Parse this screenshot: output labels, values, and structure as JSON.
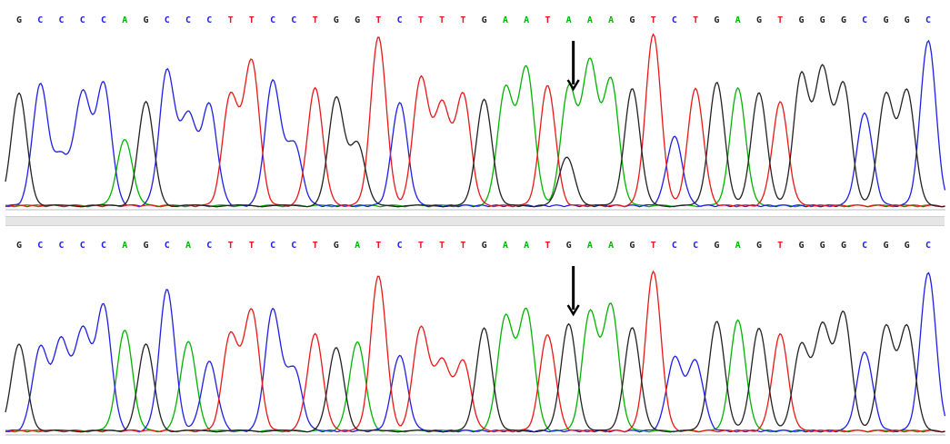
{
  "colors": {
    "A": "#00b400",
    "C": "#1f1fe6",
    "G": "#222222",
    "T": "#e81818"
  },
  "arrow_icon": "down-arrow-icon",
  "panels": [
    {
      "id": "top",
      "sequence": "GCCCCAGCCCTTCCTGGTCTTTGAATAAAGTCTGAGTGGGCGGC",
      "heterozygous_index": 26,
      "secondary_peak": {
        "base": "G",
        "level": 0.28
      },
      "peaks": [
        0.65,
        0.7,
        0.28,
        0.65,
        0.7,
        0.38,
        0.6,
        0.78,
        0.52,
        0.58,
        0.64,
        0.84,
        0.72,
        0.36,
        0.68,
        0.62,
        0.36,
        0.98,
        0.6,
        0.74,
        0.58,
        0.64,
        0.62,
        0.68,
        0.8,
        0.7,
        0.68,
        0.82,
        0.72,
        0.68,
        0.99,
        0.4,
        0.68,
        0.72,
        0.68,
        0.66,
        0.6,
        0.76,
        0.78,
        0.7,
        0.54,
        0.64,
        0.66,
        0.96
      ]
    },
    {
      "id": "bottom",
      "sequence": "GCCCCAGCACTTCCTGATCTTTGAATGAAGTCCGAGTGGGCGGC",
      "heterozygous_index": 26,
      "secondary_peak": null,
      "peaks": [
        0.5,
        0.48,
        0.52,
        0.58,
        0.72,
        0.58,
        0.5,
        0.82,
        0.52,
        0.4,
        0.56,
        0.7,
        0.7,
        0.36,
        0.56,
        0.48,
        0.52,
        0.9,
        0.44,
        0.6,
        0.4,
        0.4,
        0.6,
        0.66,
        0.7,
        0.56,
        0.62,
        0.68,
        0.72,
        0.6,
        0.92,
        0.42,
        0.4,
        0.64,
        0.64,
        0.6,
        0.56,
        0.5,
        0.6,
        0.68,
        0.46,
        0.6,
        0.6,
        0.92
      ]
    }
  ]
}
